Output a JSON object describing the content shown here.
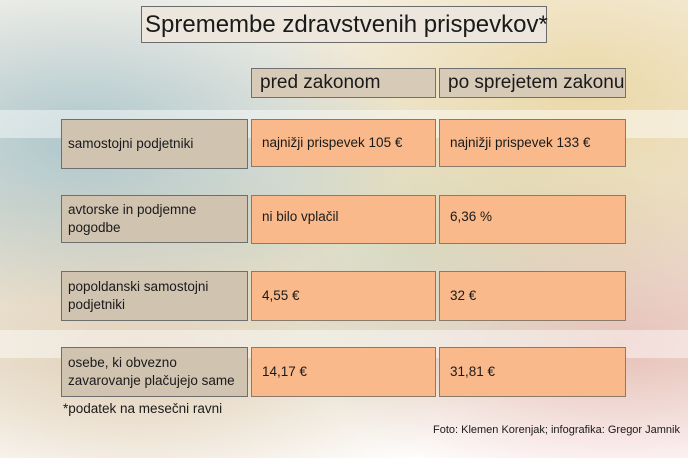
{
  "title": "Spremembe zdravstvenih prispevkov*",
  "columns": [
    "pred zakonom",
    "po sprejetem zakonu"
  ],
  "rows": [
    {
      "label": "samostojni podjetniki",
      "before": "najnižji prispevek 105 €",
      "after": "najnižji prispevek 133 €"
    },
    {
      "label": "avtorske in podjemne pogodbe",
      "before": "ni bilo vplačil",
      "after": "6,36 %"
    },
    {
      "label": "popoldanski samostojni podjetniki",
      "before": "4,55 €",
      "after": "32 €"
    },
    {
      "label": "osebe, ki obvezno zavarovanje plačujejo same",
      "before": "14,17 €",
      "after": "31,81 €"
    }
  ],
  "footnote": "*podatek na mesečni ravni",
  "credit": "Foto: Klemen Korenjak; infografika: Gregor Jamnik",
  "colors": {
    "header_bg": "#d7cab6",
    "label_bg": "#d0c3b0",
    "cell_bg": "#f9b98b",
    "title_bg": "#ece6dc"
  }
}
